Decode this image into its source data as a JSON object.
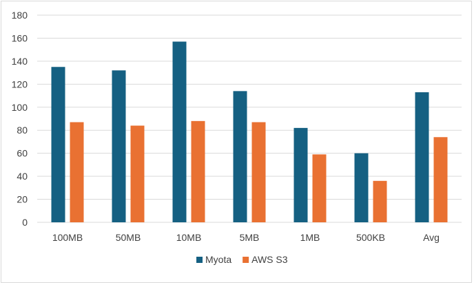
{
  "chart_data": {
    "type": "bar",
    "title": "",
    "xlabel": "",
    "ylabel": "",
    "categories": [
      "100MB",
      "50MB",
      "10MB",
      "5MB",
      "1MB",
      "500KB",
      "Avg"
    ],
    "series": [
      {
        "name": "Myota",
        "color": "#156082",
        "values": [
          135,
          132,
          157,
          114,
          82,
          60,
          113
        ]
      },
      {
        "name": "AWS S3",
        "color": "#e97132",
        "values": [
          87,
          84,
          88,
          87,
          59,
          36,
          74
        ]
      }
    ],
    "ylim": [
      0,
      180
    ],
    "yticks": [
      "0",
      "20",
      "40",
      "60",
      "80",
      "100",
      "120",
      "140",
      "160",
      "180"
    ],
    "grid": true,
    "legend": "bottom"
  }
}
